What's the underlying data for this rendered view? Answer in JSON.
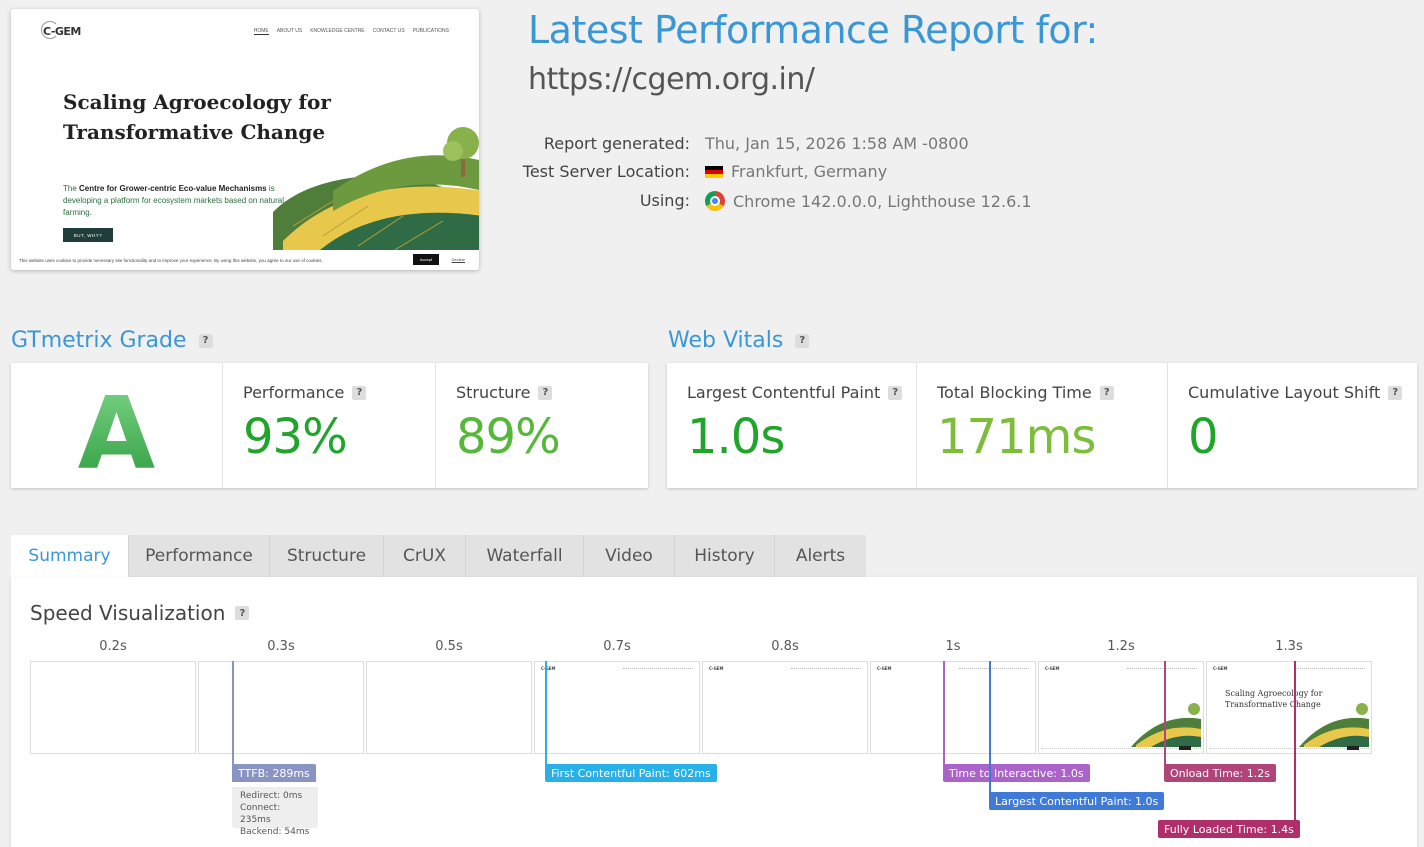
{
  "screenshot": {
    "logo": "C-GEM",
    "nav": [
      "HOME",
      "ABOUT US",
      "KNOWLEDGE CENTRE",
      "CONTACT US",
      "PUBLICATIONS"
    ],
    "heading": "Scaling Agroecology for Transformative Change",
    "sub_prefix": "The ",
    "sub_bold": "Centre for Grower-centric Eco-value Mechanisms",
    "sub_rest": " is developing a platform for ecosystem markets based on natural farming.",
    "cta": "BUT, WHY?",
    "cookie_text": "This website uses cookies to provide necessary site functionality and to improve your experience. By using this website, you agree to our use of cookies.",
    "accept": "Accept",
    "decline": "Decline"
  },
  "report": {
    "title": "Latest Performance Report for:",
    "url": "https://cgem.org.in/",
    "generated_label": "Report generated:",
    "generated_value": "Thu, Jan 15, 2026 1:58 AM -0800",
    "location_label": "Test Server Location:",
    "location_value": "Frankfurt, Germany",
    "using_label": "Using:",
    "using_value": "Chrome 142.0.0.0, Lighthouse 12.6.1"
  },
  "grade": {
    "section_title": "GTmetrix Grade",
    "letter": "A",
    "performance_label": "Performance",
    "performance_value": "93%",
    "structure_label": "Structure",
    "structure_value": "89%"
  },
  "vitals": {
    "section_title": "Web Vitals",
    "lcp_label": "Largest Contentful Paint",
    "lcp_value": "1.0s",
    "tbt_label": "Total Blocking Time",
    "tbt_value": "171ms",
    "cls_label": "Cumulative Layout Shift",
    "cls_value": "0"
  },
  "tabs": [
    "Summary",
    "Performance",
    "Structure",
    "CrUX",
    "Waterfall",
    "Video",
    "History",
    "Alerts"
  ],
  "active_tab": "Summary",
  "speed": {
    "title": "Speed Visualization",
    "frame_times": [
      "0.2s",
      "0.3s",
      "0.5s",
      "0.7s",
      "0.8s",
      "1s",
      "1.2s",
      "1.3s"
    ],
    "frame_heading": "Scaling Agroecology for Transformative Change",
    "ttfb": "TTFB: 289ms",
    "ttfb_redirect": "Redirect: 0ms",
    "ttfb_connect": "Connect: 235ms",
    "ttfb_backend": "Backend: 54ms",
    "fcp": "First Contentful Paint: 602ms",
    "tti": "Time to Interactive: 1.0s",
    "lcp": "Largest Contentful Paint: 1.0s",
    "onload": "Onload Time: 1.2s",
    "fully_loaded": "Fully Loaded Time: 1.4s"
  },
  "colors": {
    "accent_blue": "#3a97d6",
    "grade_green": "#3db34a",
    "value_green_dark": "#1fa52a",
    "value_green_light": "#6fbf3b",
    "ttfb": "#8a94c2",
    "fcp": "#2ab0e8",
    "tti": "#a963c9",
    "lcp": "#3f7ad8",
    "onload": "#b0457a",
    "fully_loaded": "#b02e6a"
  }
}
